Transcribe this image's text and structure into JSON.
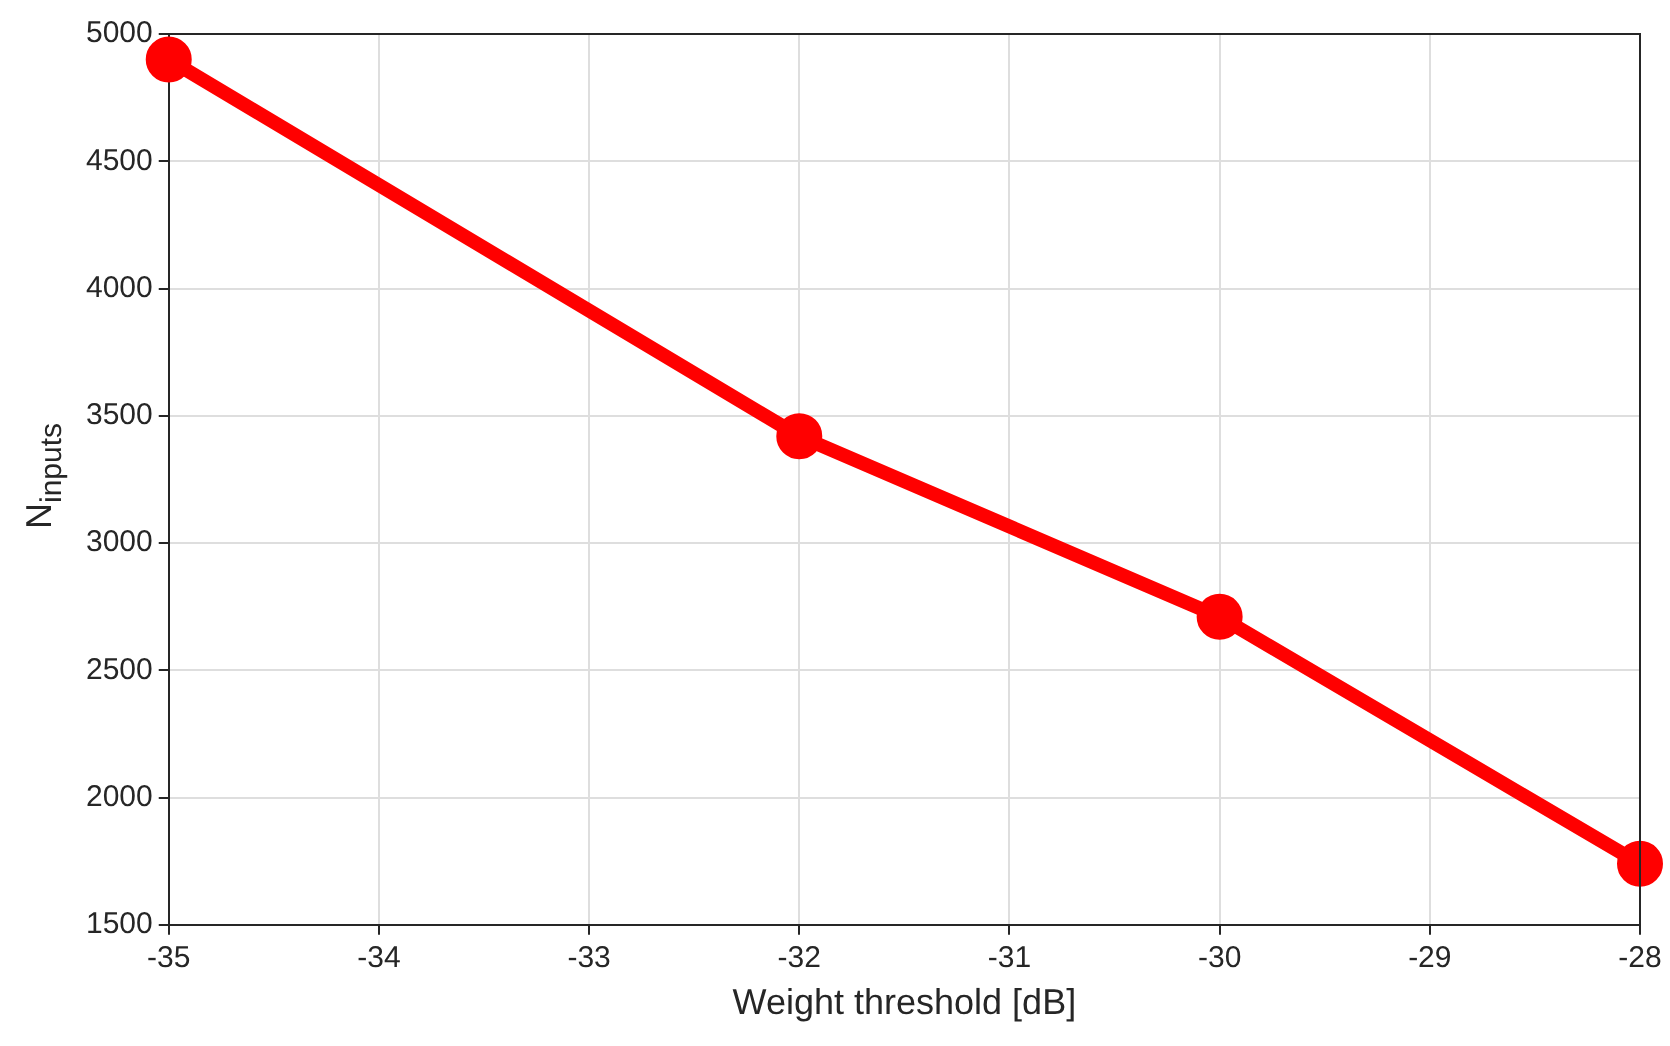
{
  "chart_data": {
    "type": "line",
    "xlabel": "Weight threshold [dB]",
    "ylabel": "N$_{inputs}$",
    "x": [
      -35,
      -32,
      -30,
      -28
    ],
    "series": [
      {
        "color": "#ff0000",
        "values": [
          4900,
          3420,
          2710,
          1740
        ]
      }
    ],
    "xlim": [
      -35,
      -28
    ],
    "xticks": [
      -35,
      -34,
      -33,
      -32,
      -31,
      -30,
      -29,
      -28
    ],
    "ylim": [
      1500,
      5000
    ],
    "yticks": [
      1500,
      2000,
      2500,
      3000,
      3500,
      4000,
      4500,
      5000
    ],
    "grid": true,
    "legend": false,
    "marker": "circle",
    "line_style": "solid"
  }
}
